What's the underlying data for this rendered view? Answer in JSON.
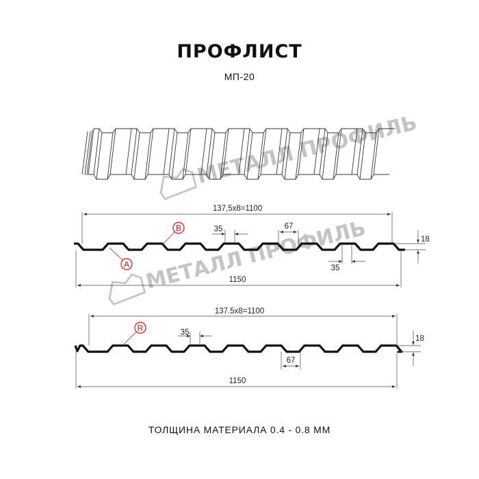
{
  "header": {
    "title": "ПРОФЛИСТ",
    "model": "МП-20"
  },
  "watermark": {
    "text": "МЕТАЛЛ ПРОФИЛЬ",
    "color": "#c4c4c4"
  },
  "drawing_1": {
    "pitch_label": "137,5x8=1100",
    "width_label": "1150",
    "rib_top_label": "35",
    "rib_bottom_label": "35",
    "valley_label": "67",
    "height_label": "18",
    "callouts": [
      "A",
      "B"
    ]
  },
  "drawing_2": {
    "pitch_label": "137.5x8=1100",
    "width_label": "1150",
    "rib_top_label": "35",
    "valley_label": "67",
    "height_label": "18",
    "callouts": [
      "R"
    ]
  },
  "footer": {
    "thickness": "ТОЛЩИНА МАТЕРИАЛА 0.4 - 0.8 ММ"
  },
  "colors": {
    "profile": "#111111",
    "callout": "#e01010",
    "dimension": "#333333"
  }
}
